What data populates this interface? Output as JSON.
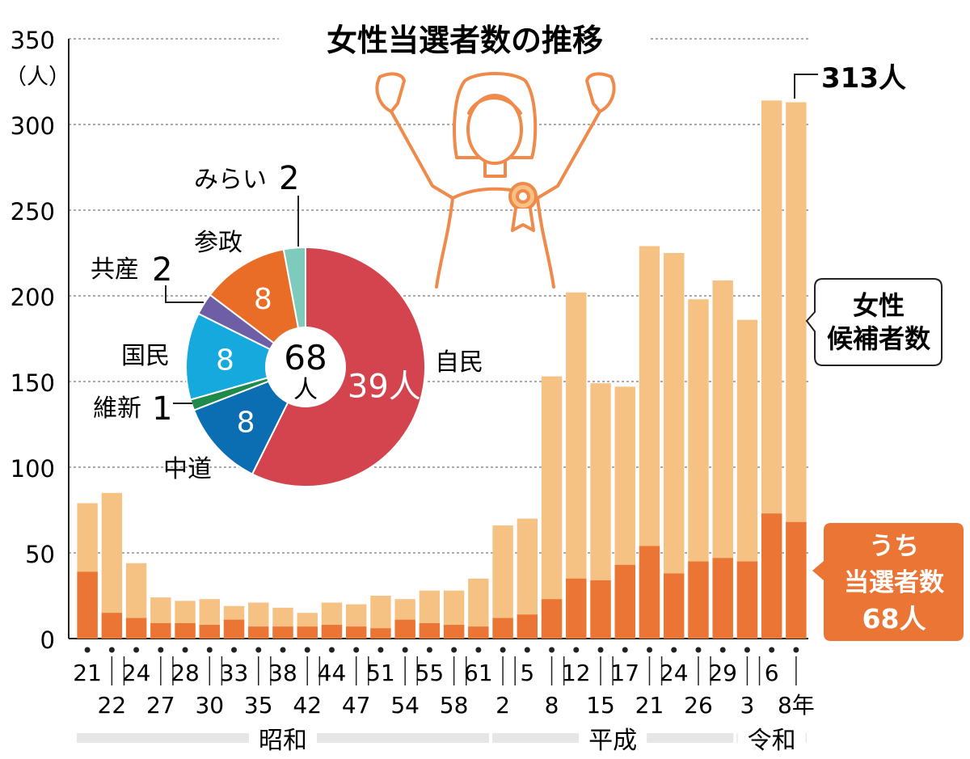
{
  "chart_data": [
    {
      "type": "bar",
      "title": "女性当選者数の推移",
      "ylabel": "（人）",
      "ylim": [
        0,
        350
      ],
      "yticks": [
        "0",
        "50",
        "100",
        "150",
        "200",
        "250",
        "300",
        "350"
      ],
      "categories": [
        "21",
        "22",
        "24",
        "27",
        "28",
        "30",
        "33",
        "35",
        "38",
        "42",
        "44",
        "47",
        "51",
        "54",
        "55",
        "58",
        "61",
        "2",
        "5",
        "8",
        "12",
        "15",
        "17",
        "21",
        "24",
        "26",
        "29",
        "3",
        "6",
        "8年"
      ],
      "series": [
        {
          "name": "女性候補者数",
          "color": "#f6c283",
          "values": [
            79,
            85,
            44,
            24,
            22,
            23,
            19,
            21,
            18,
            15,
            21,
            20,
            25,
            23,
            28,
            28,
            35,
            66,
            70,
            153,
            202,
            149,
            147,
            229,
            225,
            198,
            209,
            186,
            314,
            313
          ]
        },
        {
          "name": "うち当選者数",
          "color": "#ea7535",
          "values": [
            39,
            15,
            12,
            9,
            9,
            8,
            11,
            7,
            7,
            7,
            8,
            7,
            6,
            11,
            9,
            8,
            7,
            12,
            14,
            23,
            35,
            34,
            43,
            54,
            38,
            45,
            47,
            45,
            73,
            68
          ]
        }
      ],
      "eras": [
        {
          "label": "昭和",
          "from": 0,
          "to": 16
        },
        {
          "label": "平成",
          "from": 17,
          "to": 26
        },
        {
          "label": "令和",
          "from": 27,
          "to": 29
        }
      ],
      "callout_candidates": "313人",
      "legend_candidates": [
        "女性",
        "候補者数"
      ],
      "legend_winners": [
        "うち",
        "当選者数",
        "68人"
      ]
    },
    {
      "type": "pie",
      "title_number": "68",
      "title_unit": "人",
      "slices": [
        {
          "party": "自民",
          "value": 39,
          "inner_label": "39人",
          "color": "#d3444f"
        },
        {
          "party": "中道",
          "value": 8,
          "inner_label": "8",
          "color": "#0b6db2"
        },
        {
          "party": "維新",
          "value": 1,
          "inner_label": "",
          "outer_value": "1",
          "color": "#1f8a4c"
        },
        {
          "party": "国民",
          "value": 8,
          "inner_label": "8",
          "color": "#16a9de"
        },
        {
          "party": "共産",
          "value": 2,
          "inner_label": "",
          "outer_value": "2",
          "color": "#6e5ea5"
        },
        {
          "party": "参政",
          "value": 8,
          "inner_label": "8",
          "color": "#e96d27"
        },
        {
          "party": "みらい",
          "value": 2,
          "inner_label": "",
          "outer_value": "2",
          "color": "#7ecbbd"
        }
      ]
    }
  ],
  "colors": {
    "candidates": "#f6c283",
    "winners": "#ea7535",
    "illustration": "#f08a4b",
    "era_bar": "#e6e6e6"
  }
}
